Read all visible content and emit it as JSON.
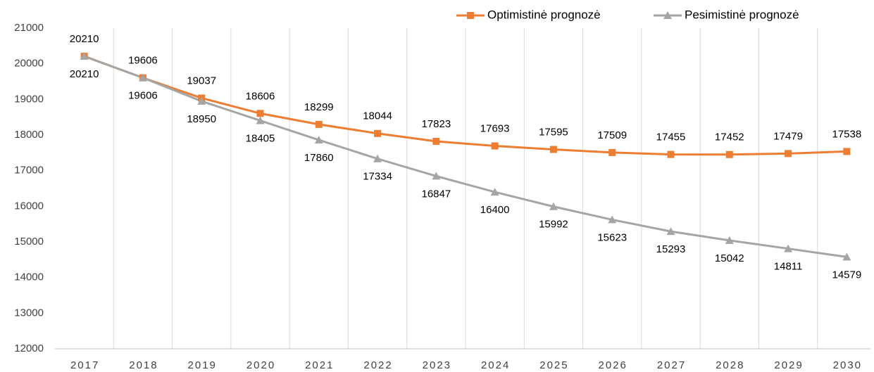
{
  "chart_data": {
    "type": "line",
    "categories": [
      "2017",
      "2018",
      "2019",
      "2020",
      "2021",
      "2022",
      "2023",
      "2024",
      "2025",
      "2026",
      "2027",
      "2028",
      "2029",
      "2030"
    ],
    "series": [
      {
        "name": "Optimistinė prognozė",
        "color": "#ed7d31",
        "marker": "square",
        "values": [
          20210,
          19606,
          19037,
          18606,
          18299,
          18044,
          17823,
          17693,
          17595,
          17509,
          17455,
          17452,
          17479,
          17538
        ]
      },
      {
        "name": "Pesimistinė prognozė",
        "color": "#a5a5a5",
        "marker": "triangle",
        "values": [
          20210,
          19606,
          18950,
          18405,
          17860,
          17334,
          16847,
          16400,
          15992,
          15623,
          15293,
          15042,
          14811,
          14579
        ]
      }
    ],
    "ylim": [
      12000,
      21000
    ],
    "yticks": [
      12000,
      13000,
      14000,
      15000,
      16000,
      17000,
      18000,
      19000,
      20000,
      21000
    ],
    "legend": "top-right"
  }
}
